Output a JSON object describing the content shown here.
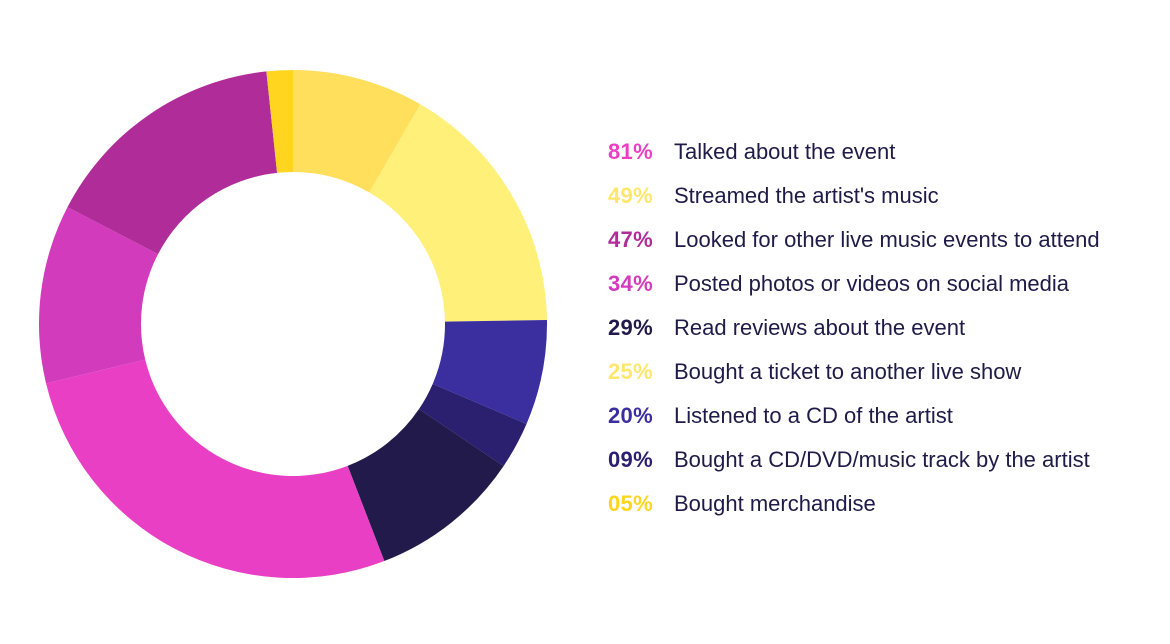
{
  "chart_data": {
    "type": "pie",
    "donut": true,
    "slices": [
      {
        "value": 81,
        "color": "#e83fc4"
      },
      {
        "value": 49,
        "color": "#fff07a"
      },
      {
        "value": 47,
        "color": "#b02c99"
      },
      {
        "value": 34,
        "color": "#d33bbd"
      },
      {
        "value": 29,
        "color": "#211a4b"
      },
      {
        "value": 25,
        "color": "#ffdf5c"
      },
      {
        "value": 20,
        "color": "#3b2fa0"
      },
      {
        "value": 9,
        "color": "#2b1f70"
      },
      {
        "value": 5,
        "color": "#ffd51f"
      }
    ],
    "ring_order": [
      5,
      1,
      6,
      7,
      4,
      0,
      3,
      2,
      8
    ],
    "legend": [
      {
        "pct": "81%",
        "label": "Talked about the event",
        "color": "#e83fc4"
      },
      {
        "pct": "49%",
        "label": "Streamed the artist's music",
        "color": "#ffe66d"
      },
      {
        "pct": "47%",
        "label": "Looked for other live music events to attend",
        "color": "#b02c99"
      },
      {
        "pct": "34%",
        "label": "Posted photos or videos on social media",
        "color": "#d33bbd"
      },
      {
        "pct": "29%",
        "label": "Read reviews about the event",
        "color": "#211a4b"
      },
      {
        "pct": "25%",
        "label": "Bought a ticket to another live show",
        "color": "#ffe66d"
      },
      {
        "pct": "20%",
        "label": "Listened to a CD of the artist",
        "color": "#3b2fa0"
      },
      {
        "pct": "09%",
        "label": "Bought a CD/DVD/music track by the artist",
        "color": "#2b1f70"
      },
      {
        "pct": "05%",
        "label": "Bought merchandise",
        "color": "#ffd51f"
      }
    ]
  }
}
